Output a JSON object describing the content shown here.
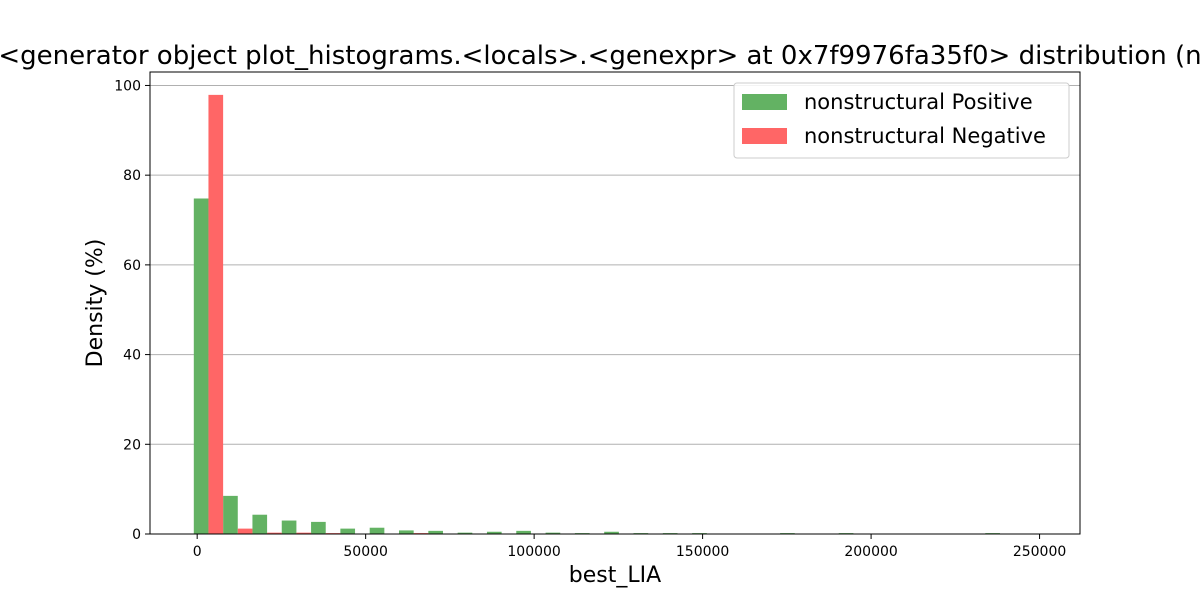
{
  "chart_data": {
    "type": "bar",
    "title": "<generator object plot_histograms.<locals>.<genexpr> at 0x7f9976fa35f0> distribution (n",
    "xlabel": "best_LIA",
    "ylabel": "Density (%)",
    "xlim": [
      -14000,
      262000
    ],
    "ylim": [
      0,
      103
    ],
    "xticks": [
      0,
      50000,
      100000,
      150000,
      200000,
      250000
    ],
    "xtick_labels": [
      "0",
      "50000",
      "100000",
      "150000",
      "200000",
      "250000"
    ],
    "yticks": [
      0,
      20,
      40,
      60,
      80,
      100
    ],
    "ytick_labels": [
      "0",
      "20",
      "40",
      "60",
      "80",
      "100"
    ],
    "grid": "horizontal",
    "legend_position": "top-right",
    "bin_edges": [
      -1000,
      7700,
      16400,
      25100,
      33800,
      42500,
      51200,
      59900,
      68600,
      77300,
      86000,
      94700,
      103400,
      112100,
      120800,
      129500,
      138200,
      146900,
      155600,
      164300,
      173000,
      181700,
      190400,
      199100,
      207800,
      216500,
      225200,
      233900,
      242600,
      251300
    ],
    "series": [
      {
        "name": "nonstructural Positive",
        "color": "#63b263",
        "values": [
          74.8,
          8.5,
          4.3,
          3.0,
          2.7,
          1.2,
          1.4,
          0.8,
          0.7,
          0.3,
          0.5,
          0.7,
          0.3,
          0.2,
          0.5,
          0.2,
          0.2,
          0.2,
          0,
          0,
          0.2,
          0,
          0.2,
          0,
          0,
          0,
          0,
          0.2,
          0
        ]
      },
      {
        "name": "nonstructural Negative",
        "color": "#ff6666",
        "values": [
          97.9,
          1.2,
          0.3,
          0.3,
          0.2,
          0.05,
          0,
          0.2,
          0,
          0,
          0,
          0,
          0,
          0,
          0,
          0,
          0,
          0,
          0,
          0,
          0,
          0,
          0,
          0,
          0,
          0,
          0,
          0,
          0
        ]
      }
    ]
  }
}
